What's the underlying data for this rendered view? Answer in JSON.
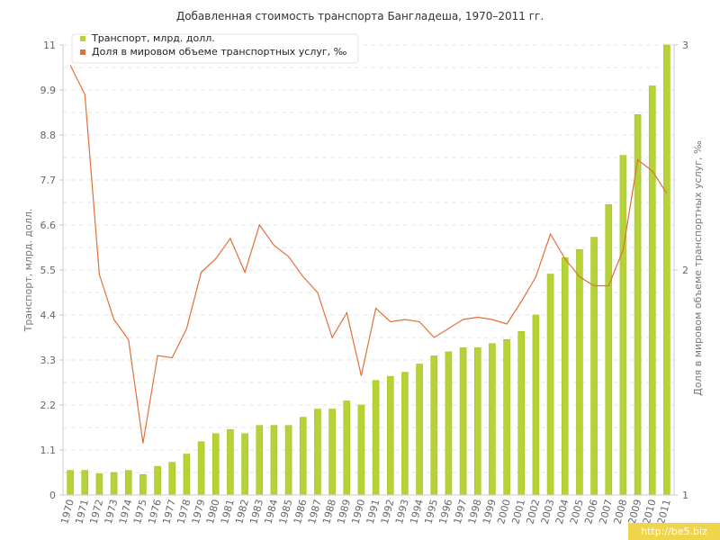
{
  "chart_data": {
    "type": "bar",
    "title": "Добавленная стоимость транспорта Бангладеша, 1970–2011 гг.",
    "categories": [
      "1970",
      "1971",
      "1972",
      "1973",
      "1974",
      "1975",
      "1976",
      "1977",
      "1978",
      "1979",
      "1980",
      "1981",
      "1982",
      "1983",
      "1984",
      "1985",
      "1986",
      "1987",
      "1988",
      "1989",
      "1990",
      "1991",
      "1992",
      "1993",
      "1994",
      "1995",
      "1996",
      "1997",
      "1998",
      "1999",
      "2000",
      "2001",
      "2002",
      "2003",
      "2004",
      "2005",
      "2006",
      "2007",
      "2008",
      "2009",
      "2010",
      "2011"
    ],
    "series": [
      {
        "name": "Транспорт, млрд. долл.",
        "type": "bar",
        "axis": "left",
        "color": "#b5d334",
        "values": [
          0.6,
          0.6,
          0.52,
          0.55,
          0.6,
          0.5,
          0.7,
          0.8,
          1.0,
          1.3,
          1.5,
          1.6,
          1.5,
          1.7,
          1.7,
          1.7,
          1.9,
          2.1,
          2.1,
          2.3,
          2.2,
          2.8,
          2.9,
          3.0,
          3.2,
          3.4,
          3.5,
          3.6,
          3.6,
          3.7,
          3.8,
          4.0,
          4.4,
          5.4,
          5.8,
          6.0,
          6.3,
          7.1,
          8.3,
          9.3,
          10.0,
          11.0
        ]
      },
      {
        "name": "Доля в мировом объеме транспортных услуг, ‰",
        "type": "line",
        "axis": "right",
        "color": "#e0703a",
        "values": [
          2.91,
          2.78,
          1.98,
          1.78,
          1.69,
          1.23,
          1.62,
          1.61,
          1.74,
          1.99,
          2.05,
          2.14,
          1.99,
          2.2,
          2.11,
          2.06,
          1.97,
          1.9,
          1.7,
          1.81,
          1.53,
          1.83,
          1.77,
          1.78,
          1.77,
          1.7,
          1.74,
          1.78,
          1.79,
          1.78,
          1.76,
          1.86,
          1.97,
          2.16,
          2.05,
          1.97,
          1.93,
          1.93,
          2.09,
          2.49,
          2.44,
          2.34
        ]
      }
    ],
    "ylabel": "Транспорт, млрд. долл.",
    "y2label": "Доля в мировом объеме транспортных услуг, ‰",
    "ylim": [
      0,
      11
    ],
    "y2lim": [
      1,
      3
    ],
    "yticks": [
      "0",
      "1.1",
      "2.2",
      "3.3",
      "4.4",
      "5.5",
      "6.6",
      "7.7",
      "8.8",
      "9.9",
      "11"
    ],
    "y2ticks": [
      "1",
      "2",
      "3"
    ],
    "grid": true,
    "legend": "top-left"
  },
  "watermark": "http://be5.biz",
  "colors": {
    "bar": "#b5d334",
    "line": "#e0703a",
    "grid": "#e5e5e5"
  }
}
